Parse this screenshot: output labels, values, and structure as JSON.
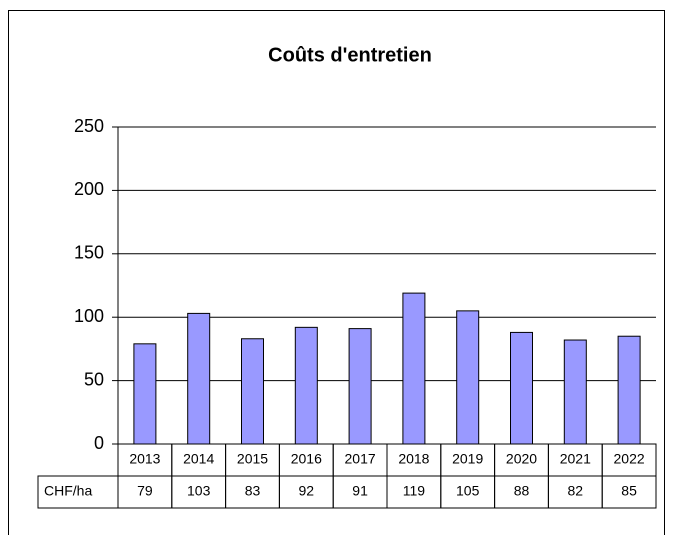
{
  "chart_data": {
    "type": "bar",
    "title": "Coûts d'entretien",
    "categories": [
      "2013",
      "2014",
      "2015",
      "2016",
      "2017",
      "2018",
      "2019",
      "2020",
      "2021",
      "2022"
    ],
    "series": [
      {
        "name": "CHF/ha",
        "color": "#9999ff",
        "values": [
          79,
          103,
          83,
          92,
          91,
          119,
          105,
          88,
          82,
          85
        ]
      }
    ],
    "ylim": [
      0,
      250
    ],
    "yticks": [
      0,
      50,
      100,
      150,
      200,
      250
    ],
    "grid": true
  }
}
